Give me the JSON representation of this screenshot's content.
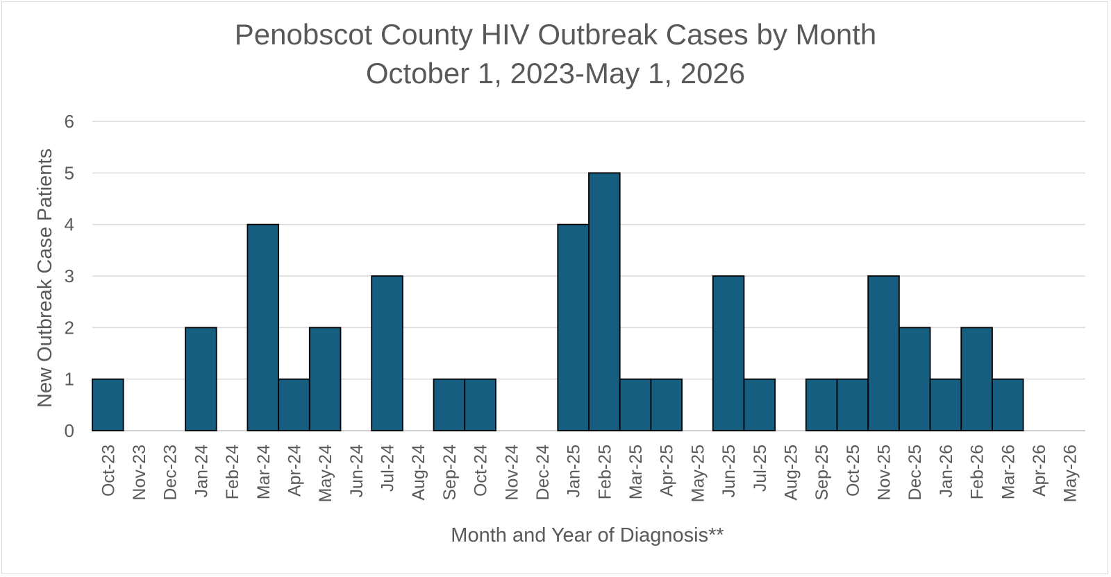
{
  "chart_data": {
    "type": "bar",
    "title": "Penobscot County HIV Outbreak Cases by Month",
    "subtitle": "October 1, 2023-May 1, 2026",
    "xlabel": "Month and Year of Diagnosis**",
    "ylabel": "New Outbreak Case Patients",
    "ylim": [
      0,
      6
    ],
    "yticks": [
      "0",
      "1",
      "2",
      "3",
      "4",
      "5",
      "6"
    ],
    "grid": true,
    "legend": "none",
    "bar_color": "#155e80",
    "categories": [
      "Oct-23",
      "Nov-23",
      "Dec-23",
      "Jan-24",
      "Feb-24",
      "Mar-24",
      "Apr-24",
      "May-24",
      "Jun-24",
      "Jul-24",
      "Aug-24",
      "Sep-24",
      "Oct-24",
      "Nov-24",
      "Dec-24",
      "Jan-25",
      "Feb-25",
      "Mar-25",
      "Apr-25",
      "May-25",
      "Jun-25",
      "Jul-25",
      "Aug-25",
      "Sep-25",
      "Oct-25",
      "Nov-25",
      "Dec-25",
      "Jan-26",
      "Feb-26",
      "Mar-26",
      "Apr-26",
      "May-26"
    ],
    "values": [
      1,
      0,
      0,
      2,
      0,
      4,
      1,
      2,
      0,
      3,
      0,
      1,
      1,
      0,
      0,
      4,
      5,
      1,
      1,
      0,
      3,
      1,
      0,
      1,
      1,
      3,
      2,
      1,
      2,
      1,
      0,
      0
    ]
  }
}
